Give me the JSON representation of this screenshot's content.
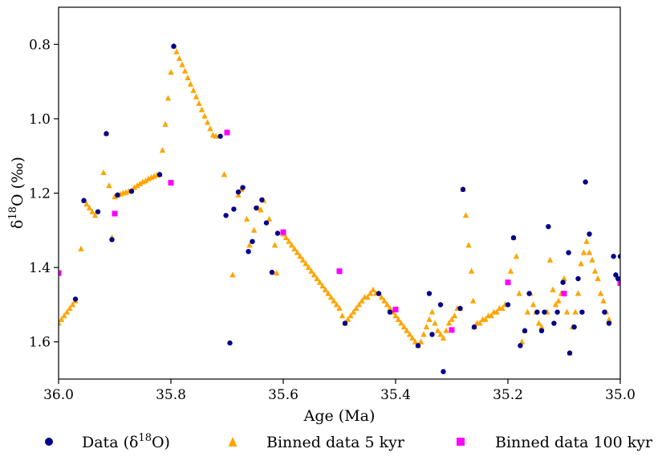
{
  "chart_data": {
    "type": "scatter",
    "title": "",
    "xlabel": "Age (Ma)",
    "ylabel": {
      "prefix": "δ",
      "sup": "18",
      "suffix": "O (‰)"
    },
    "xlim": [
      36.0,
      35.0
    ],
    "ylim": [
      1.7,
      0.7
    ],
    "x_inverted": true,
    "y_inverted": true,
    "x_ticks": [
      {
        "value": 36.0,
        "label": "36.0"
      },
      {
        "value": 35.8,
        "label": "35.8"
      },
      {
        "value": 35.6,
        "label": "35.6"
      },
      {
        "value": 35.4,
        "label": "35.4"
      },
      {
        "value": 35.2,
        "label": "35.2"
      },
      {
        "value": 35.0,
        "label": "35.0"
      }
    ],
    "y_ticks": [
      {
        "value": 0.8,
        "label": "0.8"
      },
      {
        "value": 1.0,
        "label": "1.0"
      },
      {
        "value": 1.2,
        "label": "1.2"
      },
      {
        "value": 1.4,
        "label": "1.4"
      },
      {
        "value": 1.6,
        "label": "1.6"
      }
    ],
    "grid": false,
    "legend_position": "bottom, below axes, horizontal",
    "series": [
      {
        "key": "data",
        "name": "Data (δ18O)",
        "legend": {
          "prefix": "Data (δ",
          "sup": "18",
          "suffix": "O)"
        },
        "marker": "circle",
        "color": "#00008b",
        "points": [
          [
            35.97,
            1.485
          ],
          [
            35.955,
            1.22
          ],
          [
            35.93,
            1.25
          ],
          [
            35.915,
            1.04
          ],
          [
            35.905,
            1.325
          ],
          [
            35.895,
            1.205
          ],
          [
            35.87,
            1.195
          ],
          [
            35.82,
            1.15
          ],
          [
            35.795,
            0.805
          ],
          [
            35.712,
            1.047
          ],
          [
            35.702,
            1.26
          ],
          [
            35.695,
            1.603
          ],
          [
            35.688,
            1.243
          ],
          [
            35.68,
            1.197
          ],
          [
            35.672,
            1.185
          ],
          [
            35.662,
            1.357
          ],
          [
            35.655,
            1.33
          ],
          [
            35.648,
            1.24
          ],
          [
            35.638,
            1.218
          ],
          [
            35.63,
            1.28
          ],
          [
            35.62,
            1.413
          ],
          [
            35.61,
            1.308
          ],
          [
            35.49,
            1.55
          ],
          [
            35.43,
            1.47
          ],
          [
            35.41,
            1.52
          ],
          [
            35.36,
            1.61
          ],
          [
            35.34,
            1.47
          ],
          [
            35.335,
            1.58
          ],
          [
            35.32,
            1.5
          ],
          [
            35.315,
            1.68
          ],
          [
            35.285,
            1.51
          ],
          [
            35.28,
            1.19
          ],
          [
            35.26,
            1.56
          ],
          [
            35.2,
            1.5
          ],
          [
            35.19,
            1.32
          ],
          [
            35.178,
            1.61
          ],
          [
            35.17,
            1.57
          ],
          [
            35.162,
            1.47
          ],
          [
            35.148,
            1.52
          ],
          [
            35.14,
            1.57
          ],
          [
            35.135,
            1.52
          ],
          [
            35.128,
            1.29
          ],
          [
            35.118,
            1.55
          ],
          [
            35.112,
            1.52
          ],
          [
            35.102,
            1.44
          ],
          [
            35.092,
            1.36
          ],
          [
            35.09,
            1.63
          ],
          [
            35.082,
            1.56
          ],
          [
            35.075,
            1.43
          ],
          [
            35.068,
            1.52
          ],
          [
            35.062,
            1.17
          ],
          [
            35.055,
            1.31
          ],
          [
            35.028,
            1.52
          ],
          [
            35.02,
            1.55
          ],
          [
            35.012,
            1.37
          ],
          [
            35.008,
            1.42
          ],
          [
            35.004,
            1.43
          ],
          [
            35.0,
            1.37
          ]
        ]
      },
      {
        "key": "bin5",
        "name": "Binned data 5 kyr",
        "legend": {
          "prefix": "Binned data 5 kyr",
          "sup": "",
          "suffix": ""
        },
        "marker": "triangle",
        "color": "#ffa500",
        "points": [
          [
            36.0,
            1.55
          ],
          [
            35.995,
            1.54
          ],
          [
            35.99,
            1.53
          ],
          [
            35.985,
            1.52
          ],
          [
            35.98,
            1.51
          ],
          [
            35.975,
            1.5
          ],
          [
            35.97,
            1.49
          ],
          [
            35.96,
            1.35
          ],
          [
            35.955,
            1.22
          ],
          [
            35.95,
            1.23
          ],
          [
            35.945,
            1.24
          ],
          [
            35.94,
            1.25
          ],
          [
            35.935,
            1.26
          ],
          [
            35.92,
            1.145
          ],
          [
            35.915,
            1.04
          ],
          [
            35.91,
            1.18
          ],
          [
            35.905,
            1.32
          ],
          [
            35.9,
            1.21
          ],
          [
            35.895,
            1.205
          ],
          [
            35.89,
            1.203
          ],
          [
            35.885,
            1.2
          ],
          [
            35.88,
            1.198
          ],
          [
            35.875,
            1.195
          ],
          [
            35.87,
            1.193
          ],
          [
            35.865,
            1.185
          ],
          [
            35.86,
            1.18
          ],
          [
            35.855,
            1.175
          ],
          [
            35.85,
            1.17
          ],
          [
            35.845,
            1.167
          ],
          [
            35.84,
            1.162
          ],
          [
            35.835,
            1.158
          ],
          [
            35.83,
            1.155
          ],
          [
            35.825,
            1.152
          ],
          [
            35.82,
            1.15
          ],
          [
            35.815,
            1.085
          ],
          [
            35.81,
            1.015
          ],
          [
            35.805,
            0.945
          ],
          [
            35.8,
            0.875
          ],
          [
            35.795,
            0.805
          ],
          [
            35.79,
            0.82
          ],
          [
            35.785,
            0.838
          ],
          [
            35.78,
            0.855
          ],
          [
            35.775,
            0.872
          ],
          [
            35.77,
            0.89
          ],
          [
            35.765,
            0.907
          ],
          [
            35.76,
            0.924
          ],
          [
            35.755,
            0.941
          ],
          [
            35.75,
            0.959
          ],
          [
            35.745,
            0.976
          ],
          [
            35.74,
            0.993
          ],
          [
            35.735,
            1.01
          ],
          [
            35.73,
            1.027
          ],
          [
            35.725,
            1.044
          ],
          [
            35.72,
            1.047
          ],
          [
            35.705,
            1.15
          ],
          [
            35.69,
            1.42
          ],
          [
            35.68,
            1.205
          ],
          [
            35.675,
            1.19
          ],
          [
            35.665,
            1.27
          ],
          [
            35.66,
            1.34
          ],
          [
            35.652,
            1.3
          ],
          [
            35.645,
            1.24
          ],
          [
            35.64,
            1.245
          ],
          [
            35.635,
            1.22
          ],
          [
            35.625,
            1.27
          ],
          [
            35.615,
            1.34
          ],
          [
            35.612,
            1.415
          ],
          [
            35.6,
            1.31
          ],
          [
            35.595,
            1.32
          ],
          [
            35.59,
            1.33
          ],
          [
            35.585,
            1.34
          ],
          [
            35.58,
            1.35
          ],
          [
            35.575,
            1.36
          ],
          [
            35.57,
            1.37
          ],
          [
            35.565,
            1.38
          ],
          [
            35.56,
            1.39
          ],
          [
            35.555,
            1.4
          ],
          [
            35.55,
            1.41
          ],
          [
            35.545,
            1.42
          ],
          [
            35.54,
            1.43
          ],
          [
            35.535,
            1.44
          ],
          [
            35.53,
            1.45
          ],
          [
            35.525,
            1.46
          ],
          [
            35.52,
            1.47
          ],
          [
            35.515,
            1.48
          ],
          [
            35.51,
            1.49
          ],
          [
            35.505,
            1.5
          ],
          [
            35.5,
            1.51
          ],
          [
            35.495,
            1.53
          ],
          [
            35.49,
            1.55
          ],
          [
            35.485,
            1.54
          ],
          [
            35.48,
            1.53
          ],
          [
            35.475,
            1.52
          ],
          [
            35.47,
            1.51
          ],
          [
            35.465,
            1.5
          ],
          [
            35.46,
            1.49
          ],
          [
            35.455,
            1.48
          ],
          [
            35.45,
            1.48
          ],
          [
            35.445,
            1.47
          ],
          [
            35.44,
            1.46
          ],
          [
            35.435,
            1.47
          ],
          [
            35.43,
            1.47
          ],
          [
            35.425,
            1.48
          ],
          [
            35.42,
            1.49
          ],
          [
            35.415,
            1.5
          ],
          [
            35.41,
            1.51
          ],
          [
            35.405,
            1.52
          ],
          [
            35.4,
            1.53
          ],
          [
            35.395,
            1.54
          ],
          [
            35.39,
            1.55
          ],
          [
            35.385,
            1.56
          ],
          [
            35.38,
            1.57
          ],
          [
            35.375,
            1.58
          ],
          [
            35.37,
            1.59
          ],
          [
            35.365,
            1.6
          ],
          [
            35.36,
            1.61
          ],
          [
            35.355,
            1.6
          ],
          [
            35.35,
            1.58
          ],
          [
            35.345,
            1.56
          ],
          [
            35.34,
            1.54
          ],
          [
            35.335,
            1.52
          ],
          [
            35.33,
            1.55
          ],
          [
            35.325,
            1.57
          ],
          [
            35.32,
            1.58
          ],
          [
            35.315,
            1.59
          ],
          [
            35.31,
            1.57
          ],
          [
            35.305,
            1.55
          ],
          [
            35.3,
            1.54
          ],
          [
            35.295,
            1.53
          ],
          [
            35.29,
            1.51
          ],
          [
            35.285,
            1.51
          ],
          [
            35.28,
            1.19
          ],
          [
            35.275,
            1.26
          ],
          [
            35.27,
            1.34
          ],
          [
            35.265,
            1.41
          ],
          [
            35.262,
            1.49
          ],
          [
            35.26,
            1.56
          ],
          [
            35.255,
            1.55
          ],
          [
            35.25,
            1.55
          ],
          [
            35.245,
            1.54
          ],
          [
            35.24,
            1.54
          ],
          [
            35.235,
            1.53
          ],
          [
            35.23,
            1.53
          ],
          [
            35.225,
            1.52
          ],
          [
            35.22,
            1.52
          ],
          [
            35.215,
            1.51
          ],
          [
            35.21,
            1.51
          ],
          [
            35.205,
            1.5
          ],
          [
            35.195,
            1.41
          ],
          [
            35.19,
            1.32
          ],
          [
            35.185,
            1.37
          ],
          [
            35.18,
            1.47
          ],
          [
            35.175,
            1.6
          ],
          [
            35.17,
            1.57
          ],
          [
            35.165,
            1.52
          ],
          [
            35.16,
            1.47
          ],
          [
            35.155,
            1.5
          ],
          [
            35.15,
            1.52
          ],
          [
            35.145,
            1.55
          ],
          [
            35.14,
            1.56
          ],
          [
            35.13,
            1.52
          ],
          [
            35.125,
            1.38
          ],
          [
            35.12,
            1.46
          ],
          [
            35.115,
            1.5
          ],
          [
            35.11,
            1.49
          ],
          [
            35.105,
            1.47
          ],
          [
            35.1,
            1.43
          ],
          [
            35.095,
            1.52
          ],
          [
            35.09,
            1.63
          ],
          [
            35.085,
            1.56
          ],
          [
            35.08,
            1.52
          ],
          [
            35.075,
            1.47
          ],
          [
            35.07,
            1.39
          ],
          [
            35.065,
            1.36
          ],
          [
            35.06,
            1.33
          ],
          [
            35.055,
            1.36
          ],
          [
            35.05,
            1.38
          ],
          [
            35.045,
            1.41
          ],
          [
            35.04,
            1.43
          ],
          [
            35.035,
            1.47
          ],
          [
            35.03,
            1.49
          ],
          [
            35.025,
            1.52
          ],
          [
            35.02,
            1.54
          ],
          [
            35.0,
            1.43
          ]
        ]
      },
      {
        "key": "bin100",
        "name": "Binned data 100 kyr",
        "legend": {
          "prefix": "Binned data 100 kyr",
          "sup": "",
          "suffix": ""
        },
        "marker": "square",
        "color": "#ff00ff",
        "points": [
          [
            36.0,
            1.415
          ],
          [
            35.9,
            1.255
          ],
          [
            35.8,
            1.172
          ],
          [
            35.7,
            1.037
          ],
          [
            35.6,
            1.305
          ],
          [
            35.5,
            1.41
          ],
          [
            35.4,
            1.513
          ],
          [
            35.3,
            1.568
          ],
          [
            35.2,
            1.44
          ],
          [
            35.1,
            1.47
          ],
          [
            35.0,
            1.442
          ]
        ]
      }
    ]
  }
}
